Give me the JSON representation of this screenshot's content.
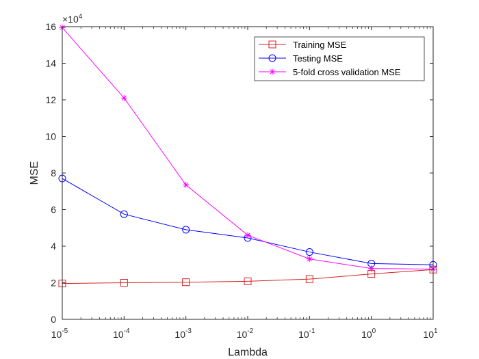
{
  "chart_data": {
    "type": "line",
    "x": [
      1e-05,
      0.0001,
      0.001,
      0.01,
      0.1,
      1,
      10
    ],
    "x_tick_labels": [
      {
        "base": "10",
        "exp": "-5"
      },
      {
        "base": "10",
        "exp": "-4"
      },
      {
        "base": "10",
        "exp": "-3"
      },
      {
        "base": "10",
        "exp": "-2"
      },
      {
        "base": "10",
        "exp": "-1"
      },
      {
        "base": "10",
        "exp": "0"
      },
      {
        "base": "10",
        "exp": "1"
      }
    ],
    "xscale": "log",
    "xlim": [
      1e-05,
      10
    ],
    "ylim": [
      0,
      16
    ],
    "y_ticks": [
      0,
      2,
      4,
      6,
      8,
      10,
      12,
      14,
      16
    ],
    "y_tick_labels": [
      "0",
      "2",
      "4",
      "6",
      "8",
      "10",
      "12",
      "14",
      "16"
    ],
    "y_multiplier": {
      "base": "×10",
      "exp": "4"
    },
    "xlabel": "Lambda",
    "ylabel": "MSE",
    "grid": false,
    "legend_position": "top-right",
    "series": [
      {
        "name": "Training MSE",
        "color": "#d62020",
        "marker": "square",
        "values": [
          1.96,
          2.0,
          2.03,
          2.08,
          2.2,
          2.48,
          2.72
        ]
      },
      {
        "name": "Testing MSE",
        "color": "#0000ff",
        "marker": "circle",
        "values": [
          7.7,
          5.75,
          4.9,
          4.45,
          3.68,
          3.05,
          2.98
        ]
      },
      {
        "name": "5-fold cross validation MSE",
        "color": "#ff00ff",
        "marker": "asterisk",
        "values": [
          15.95,
          12.1,
          7.35,
          4.6,
          3.3,
          2.78,
          2.75
        ]
      }
    ]
  }
}
